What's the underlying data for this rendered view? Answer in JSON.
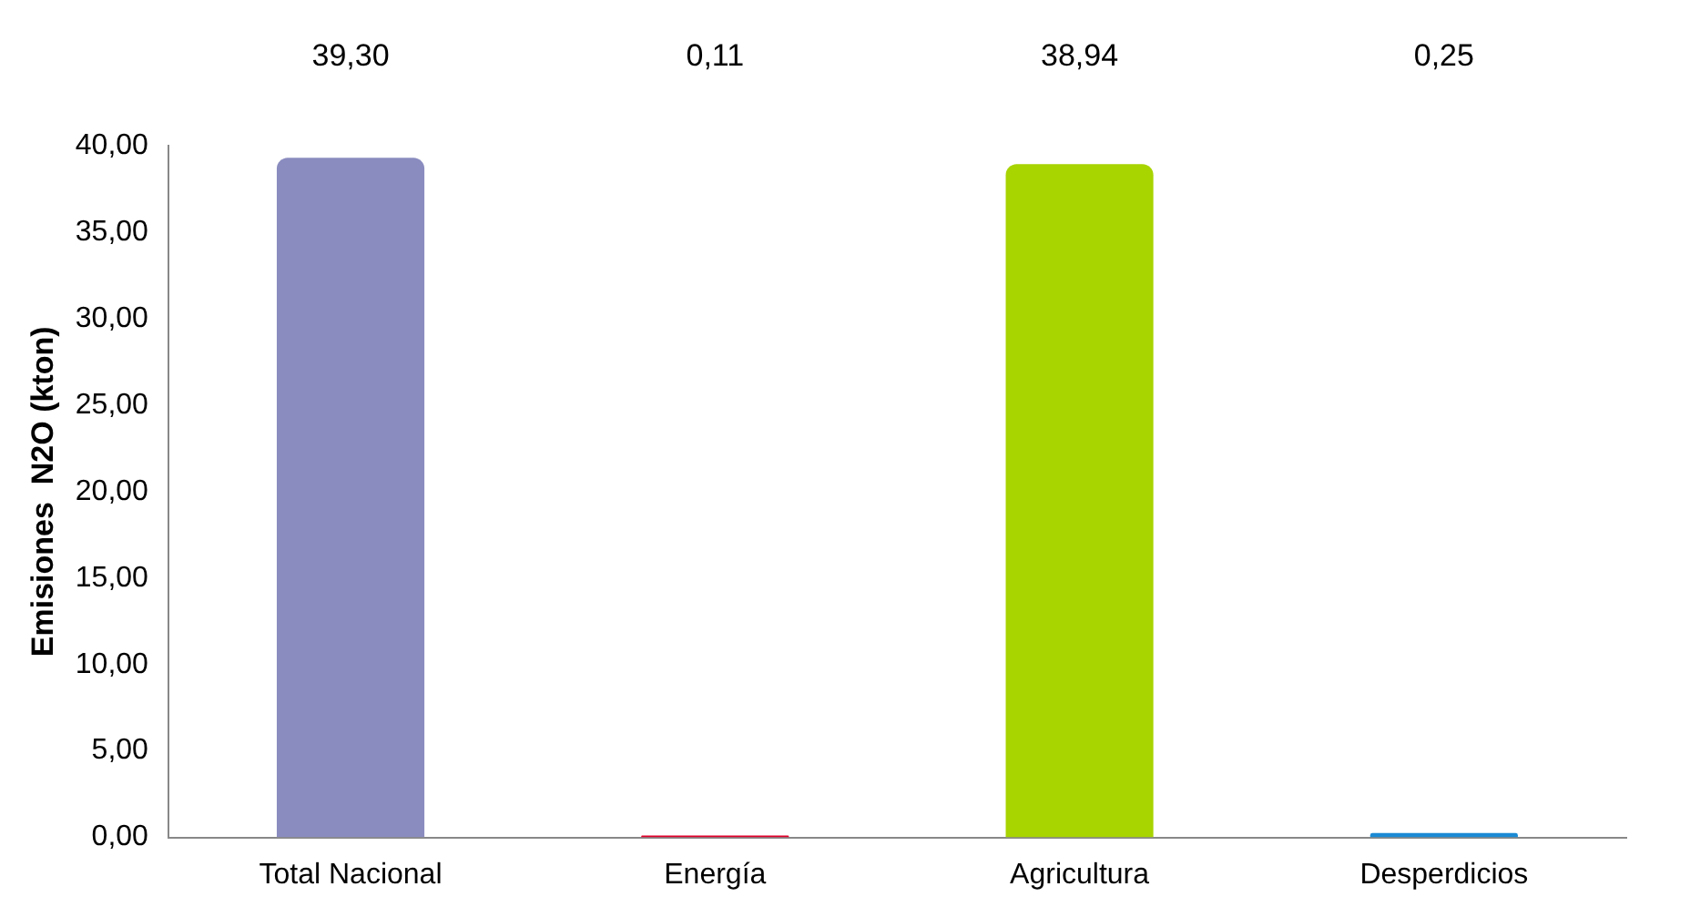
{
  "chart_data": {
    "type": "bar",
    "ylabel": "Emisiones  N2O (kton)",
    "categories": [
      "Total Nacional",
      "Energía",
      "Agricultura",
      "Desperdicios"
    ],
    "values": [
      39.3,
      0.11,
      38.94,
      0.25
    ],
    "colors": [
      "#8a8cbf",
      "#e0002a",
      "#a8d400",
      "#1a8ad4"
    ],
    "value_labels": [
      "39,30",
      "0,11",
      "38,94",
      "0,25"
    ],
    "ylim": [
      0,
      40
    ],
    "yticks": [
      {
        "value": 0,
        "label": "0,00"
      },
      {
        "value": 5,
        "label": "5,00"
      },
      {
        "value": 10,
        "label": "10,00"
      },
      {
        "value": 15,
        "label": "15,00"
      },
      {
        "value": 20,
        "label": "20,00"
      },
      {
        "value": 25,
        "label": "25,00"
      },
      {
        "value": 30,
        "label": "30,00"
      },
      {
        "value": 35,
        "label": "35,00"
      },
      {
        "value": 40,
        "label": "40,00"
      }
    ],
    "grid": false,
    "legend": false
  }
}
